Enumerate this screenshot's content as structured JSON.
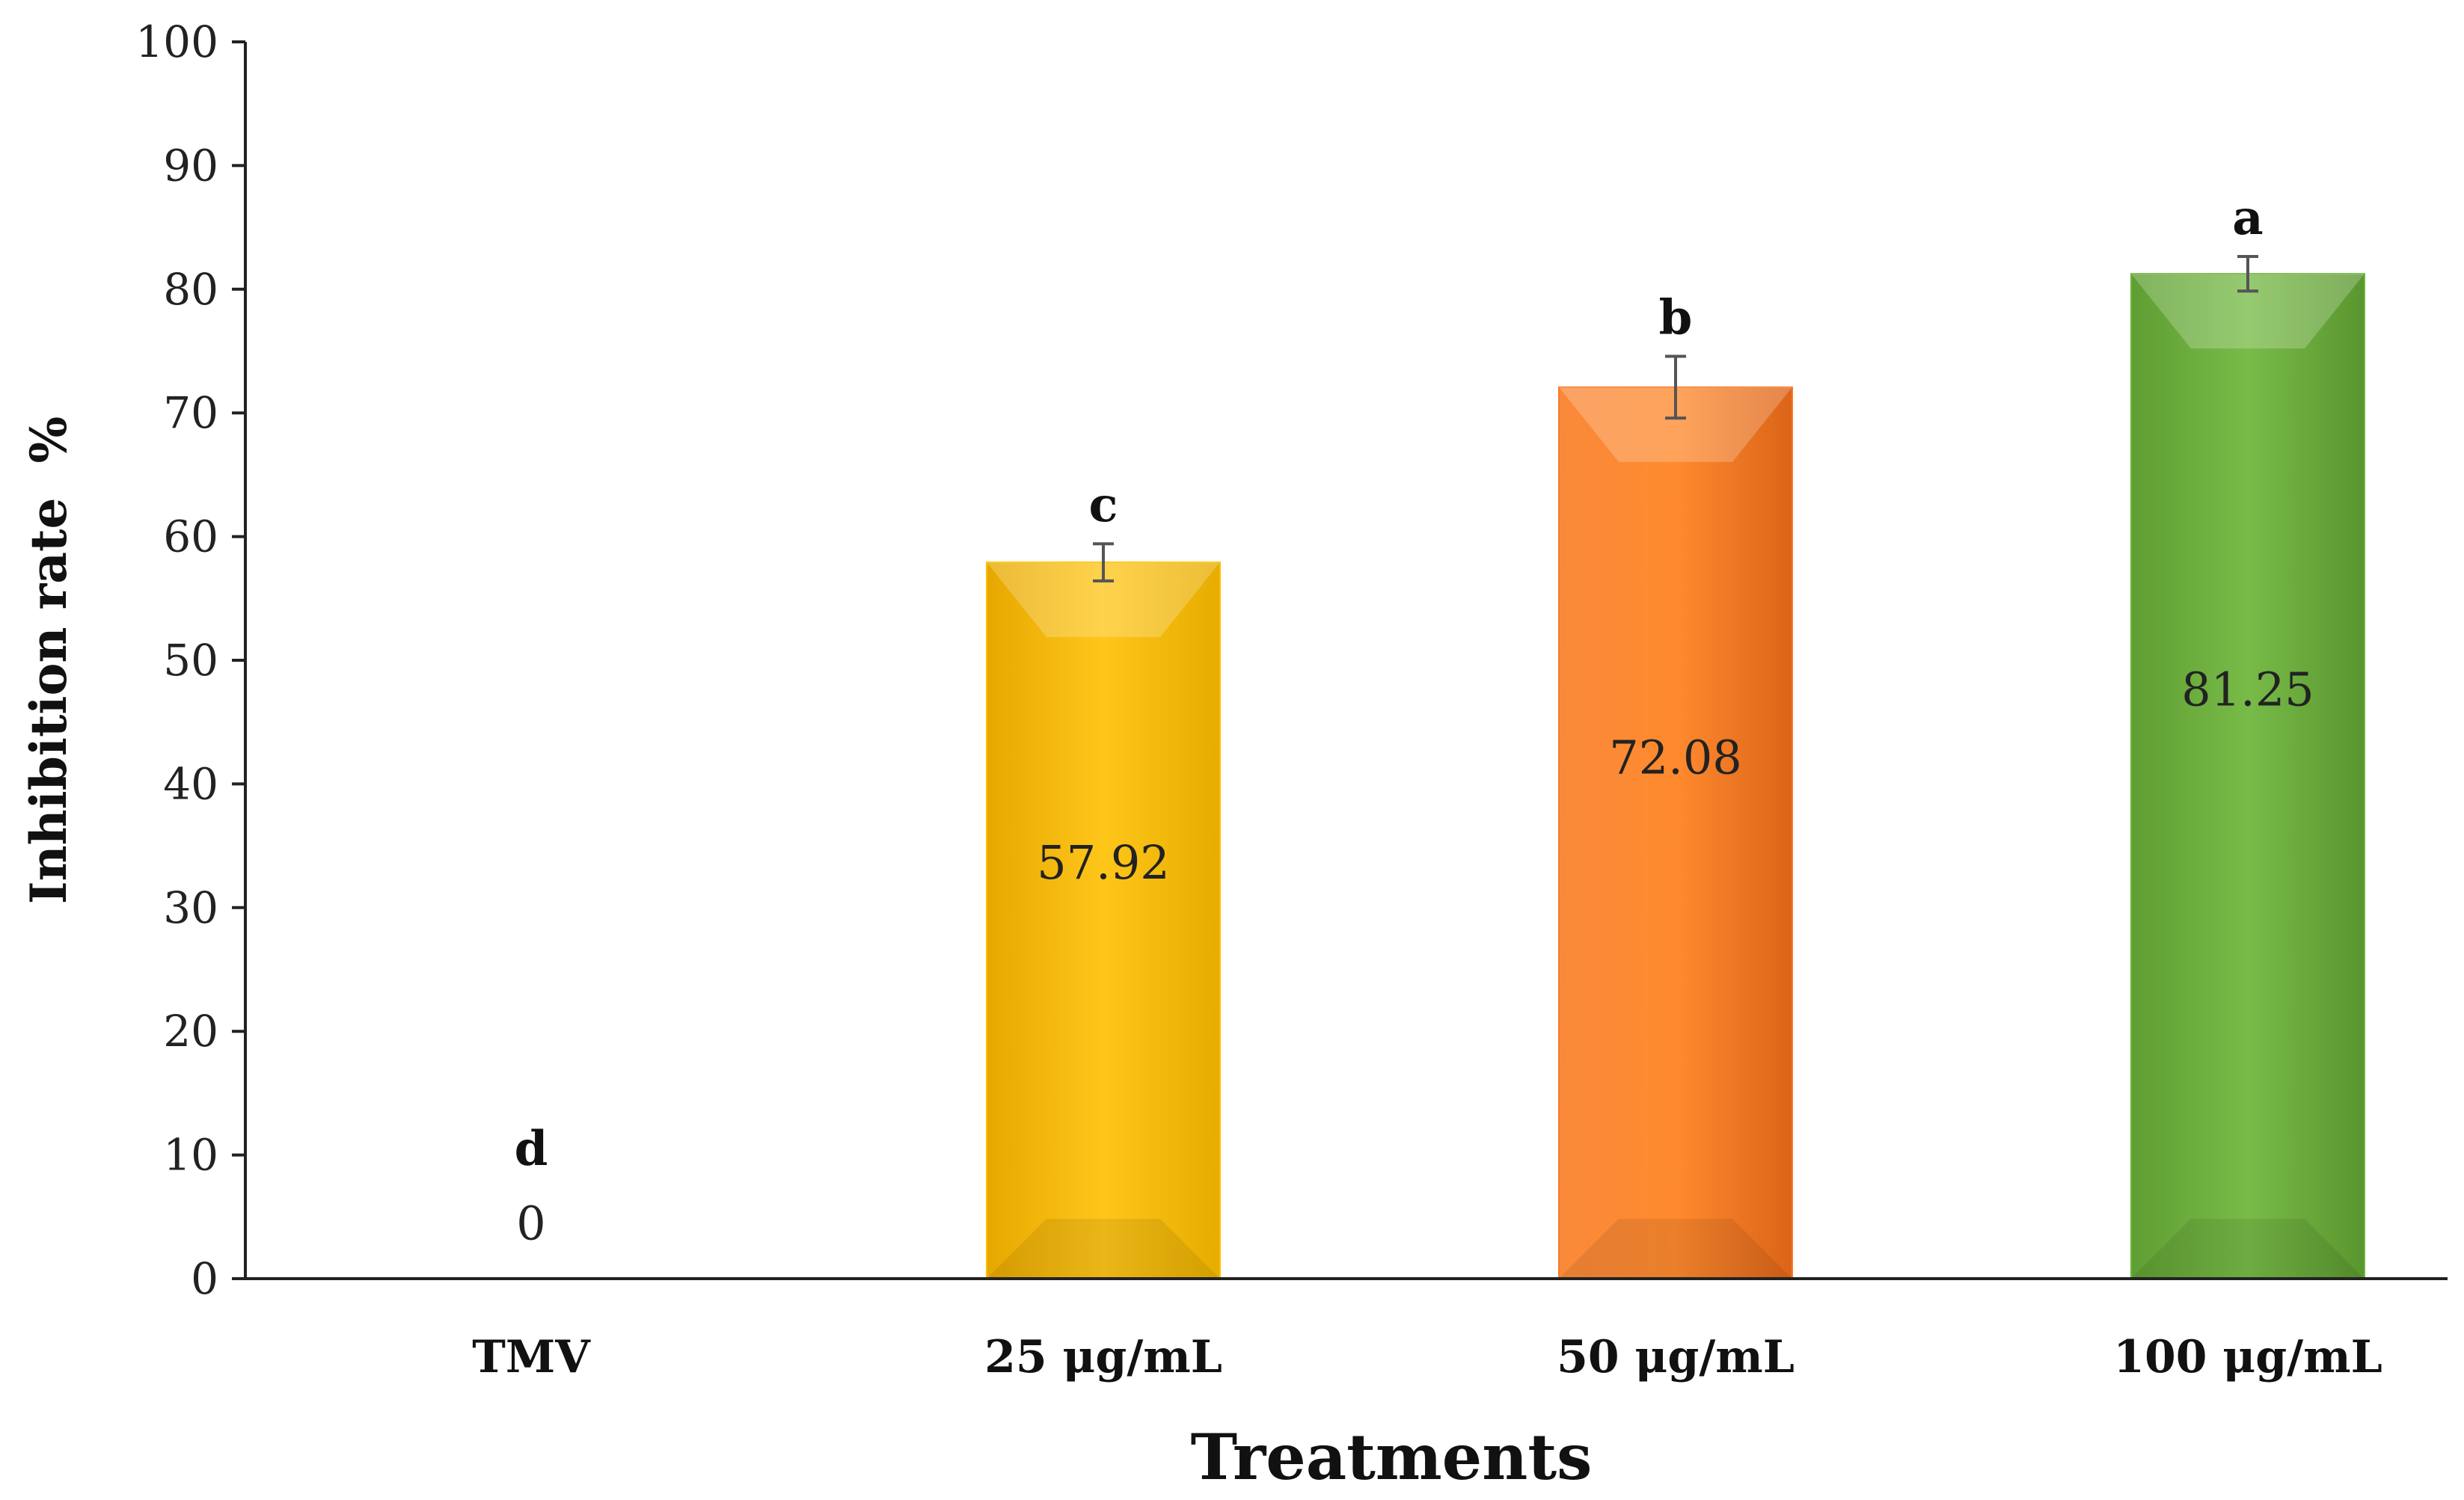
{
  "chart_data": {
    "type": "bar",
    "xlabel": "Treatments",
    "ylabel": "Inhibition rate  %",
    "ylim": [
      0,
      100
    ],
    "yticks": [
      0,
      10,
      20,
      30,
      40,
      50,
      60,
      70,
      80,
      90,
      100
    ],
    "categories": [
      "TMV",
      "25 μg/mL",
      "50 μg/mL",
      "100 μg/mL"
    ],
    "values": [
      0,
      57.92,
      72.08,
      81.25
    ],
    "value_labels": [
      "0",
      "57.92",
      "72.08",
      "81.25"
    ],
    "errors": [
      0,
      1.5,
      2.5,
      1.4
    ],
    "significance_letters": [
      "d",
      "c",
      "b",
      "a"
    ],
    "bar_colors": [
      "#ffffff",
      "#ffc000",
      "#f97a2a",
      "#6fb43f"
    ],
    "grid": false
  }
}
